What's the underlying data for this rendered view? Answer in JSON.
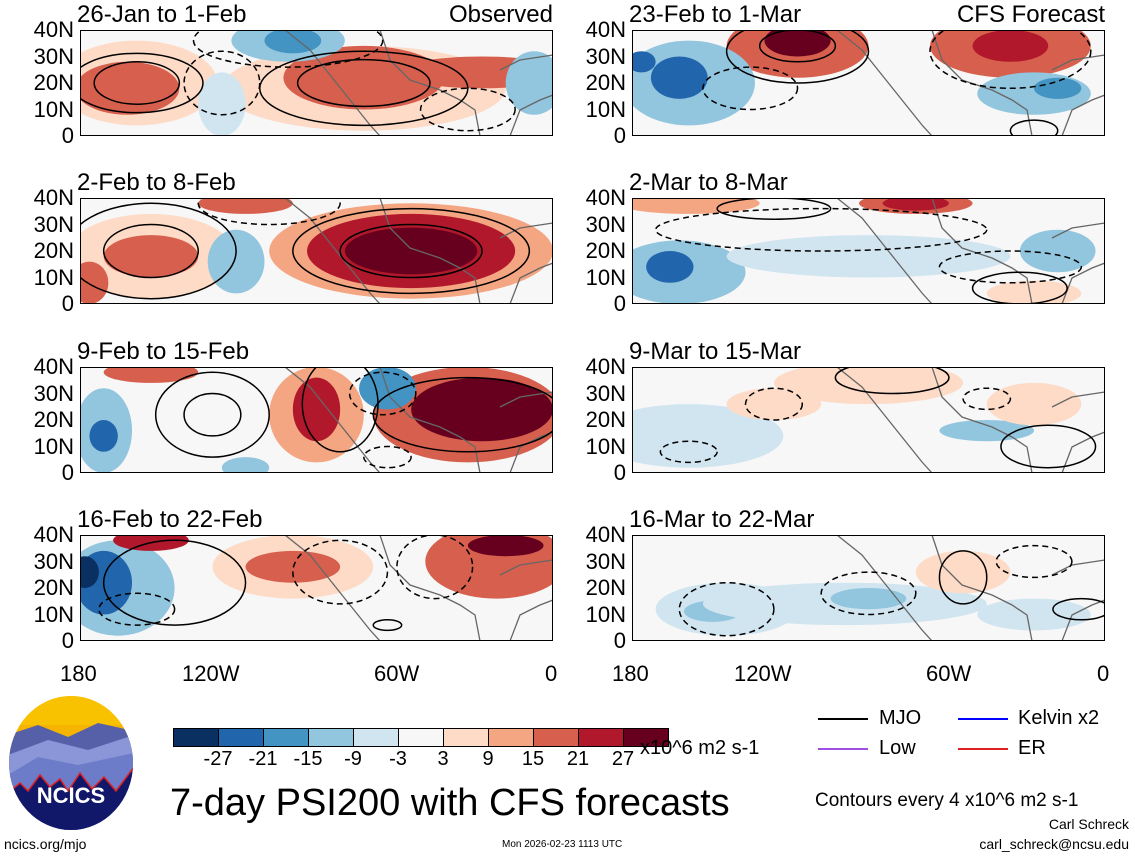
{
  "panels_left": [
    {
      "title": "26-Jan to 1-Feb",
      "tag": "Observed"
    },
    {
      "title": "2-Feb to 8-Feb"
    },
    {
      "title": "9-Feb to 15-Feb"
    },
    {
      "title": "16-Feb to 22-Feb"
    }
  ],
  "panels_right": [
    {
      "title": "23-Feb to 1-Mar",
      "tag": "CFS Forecast"
    },
    {
      "title": "2-Mar to 8-Mar"
    },
    {
      "title": "9-Mar to 15-Mar"
    },
    {
      "title": "16-Mar to 22-Mar"
    }
  ],
  "y_ticks": [
    "40N",
    "30N",
    "20N",
    "10N",
    "0"
  ],
  "x_ticks": [
    "180",
    "120W",
    "60W",
    "0"
  ],
  "colorbar": {
    "colors": [
      "#0a2f61",
      "#2166ac",
      "#4393c3",
      "#92c5de",
      "#d1e5f0",
      "#f7f7f7",
      "#fddbc7",
      "#f4a582",
      "#d6604d",
      "#b2182b",
      "#67001f"
    ],
    "labels": [
      "-27",
      "-21",
      "-15",
      "-9",
      "-3",
      "3",
      "9",
      "15",
      "21",
      "27"
    ],
    "units": "x10^6 m2 s-1"
  },
  "legend": [
    {
      "label": "MJO",
      "color": "#000000"
    },
    {
      "label": "Kelvin x2",
      "color": "#0000ff"
    },
    {
      "label": "Low",
      "color": "#a050e0"
    },
    {
      "label": "ER",
      "color": "#e02020"
    }
  ],
  "contour_note": "Contours every 4 x10^6 m2 s-1",
  "title": "7-day PSI200 with CFS forecasts",
  "logo_text": "NCICS",
  "site": "ncics.org/mjo",
  "timestamp": "Mon 2026-02-23 1113 UTC",
  "author": "Carl Schreck",
  "email": "carl_schreck@ncsu.edu"
}
